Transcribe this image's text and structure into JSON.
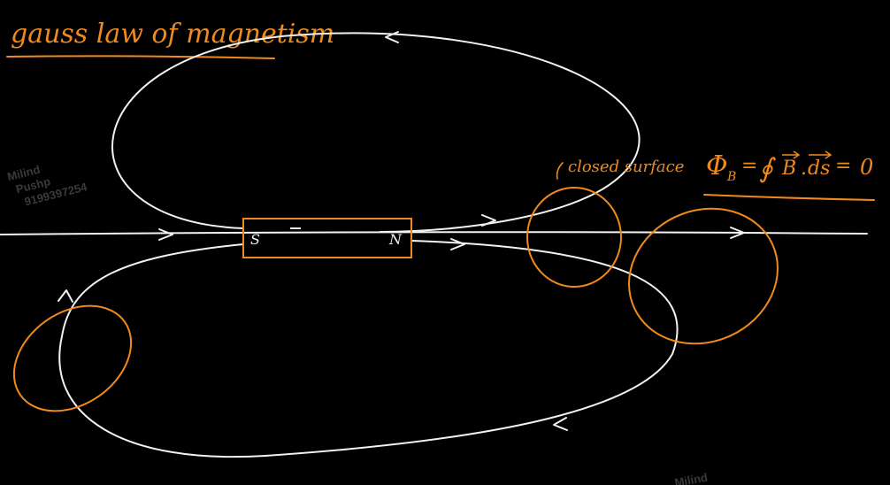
{
  "title": "gauss law of magnetism",
  "closed_surface_label": "closed surface",
  "formula": {
    "lhs": "∮B",
    "subscript": "B",
    "equals1": "=",
    "integral": "∮",
    "vec_b": "B",
    "dot": ".",
    "vec_ds": "ds",
    "equals2": "=",
    "rhs": "0"
  },
  "magnet": {
    "south_label": "S",
    "north_label": "N"
  },
  "watermark": {
    "line1": "Milind",
    "line2": "Pushp",
    "line3": "9199397254",
    "bottom": "Milind"
  },
  "colors": {
    "background": "#000000",
    "ink_white": "#f2f2f2",
    "ink_orange": "#f08a1c",
    "watermark": "#3a3a3a"
  }
}
